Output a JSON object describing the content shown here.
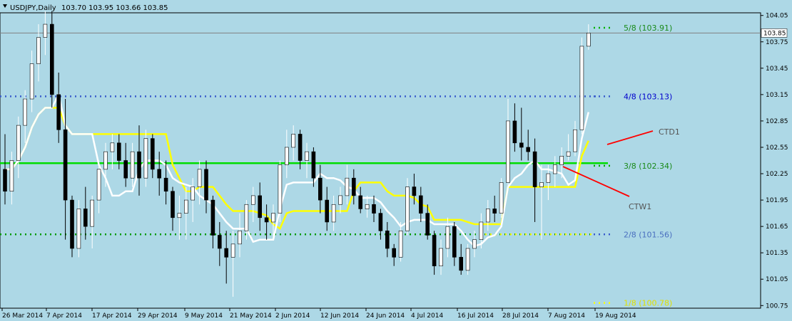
{
  "header": {
    "symbol": "USDJPY,Daily",
    "ohlc": "103.70 103.95 103.66 103.85"
  },
  "colors": {
    "background": "#ADD8E6",
    "bull_fill": "#FFFFFF",
    "bear_fill": "#000000",
    "grid_level_green": "#00DD00",
    "white_line": "#FFFFFF",
    "yellow_line": "#FFFF00",
    "red_line": "#FF0000",
    "current_price_line": "#808080"
  },
  "chart_data": {
    "type": "candlestick",
    "title": "USDJPY,Daily",
    "ylim": [
      100.72,
      104.08
    ],
    "y_ticks": [
      "104.05",
      "103.75",
      "103.45",
      "103.15",
      "102.85",
      "102.55",
      "102.25",
      "101.95",
      "101.65",
      "101.35",
      "101.05",
      "100.75"
    ],
    "x_ticks": [
      "26 Mar 2014",
      "7 Apr 2014",
      "17 Apr 2014",
      "29 Apr 2014",
      "9 May 2014",
      "21 May 2014",
      "2 Jun 2014",
      "12 Jun 2014",
      "24 Jun 2014",
      "4 Jul 2014",
      "16 Jul 2014",
      "28 Jul 2014",
      "7 Aug 2014",
      "19 Aug 2014"
    ],
    "current_price": "103.85",
    "current_price_value": 103.85,
    "candles": [
      [
        102.3,
        102.7,
        101.9,
        102.05
      ],
      [
        102.05,
        102.5,
        101.9,
        102.4
      ],
      [
        102.4,
        102.9,
        102.2,
        102.8
      ],
      [
        102.8,
        103.2,
        102.6,
        103.1
      ],
      [
        103.1,
        103.65,
        102.95,
        103.5
      ],
      [
        103.5,
        103.95,
        103.3,
        103.8
      ],
      [
        103.8,
        104.1,
        103.6,
        103.95
      ],
      [
        103.95,
        104.1,
        103.0,
        103.15
      ],
      [
        103.15,
        103.4,
        102.6,
        102.75
      ],
      [
        102.75,
        103.1,
        101.5,
        101.95
      ],
      [
        101.95,
        102.0,
        101.3,
        101.4
      ],
      [
        101.4,
        101.95,
        101.3,
        101.85
      ],
      [
        101.85,
        102.1,
        101.5,
        101.65
      ],
      [
        101.65,
        102.0,
        101.4,
        101.95
      ],
      [
        101.95,
        102.4,
        101.8,
        102.3
      ],
      [
        102.3,
        102.6,
        102.1,
        102.5
      ],
      [
        102.5,
        102.7,
        102.3,
        102.6
      ],
      [
        102.6,
        102.7,
        102.3,
        102.4
      ],
      [
        102.4,
        102.6,
        102.1,
        102.2
      ],
      [
        102.2,
        102.6,
        102.1,
        102.5
      ],
      [
        102.5,
        102.8,
        102.0,
        102.2
      ],
      [
        102.2,
        102.75,
        102.1,
        102.65
      ],
      [
        102.65,
        102.7,
        102.2,
        102.3
      ],
      [
        102.3,
        102.5,
        102.0,
        102.2
      ],
      [
        102.2,
        102.4,
        101.9,
        102.05
      ],
      [
        102.05,
        102.1,
        101.6,
        101.75
      ],
      [
        101.75,
        102.0,
        101.5,
        101.8
      ],
      [
        101.8,
        102.1,
        101.5,
        101.95
      ],
      [
        101.95,
        102.2,
        101.7,
        102.1
      ],
      [
        102.1,
        102.4,
        101.9,
        102.3
      ],
      [
        102.3,
        102.4,
        101.8,
        101.95
      ],
      [
        101.95,
        102.0,
        101.4,
        101.55
      ],
      [
        101.55,
        101.7,
        101.2,
        101.4
      ],
      [
        101.4,
        101.6,
        101.0,
        101.3
      ],
      [
        101.3,
        101.6,
        100.85,
        101.45
      ],
      [
        101.45,
        101.8,
        101.3,
        101.6
      ],
      [
        101.6,
        101.95,
        101.5,
        101.9
      ],
      [
        101.9,
        102.1,
        101.7,
        102.0
      ],
      [
        102.0,
        102.15,
        101.6,
        101.75
      ],
      [
        101.75,
        101.9,
        101.5,
        101.7
      ],
      [
        101.7,
        101.9,
        101.5,
        101.8
      ],
      [
        101.8,
        102.4,
        101.7,
        102.35
      ],
      [
        102.35,
        102.75,
        102.2,
        102.55
      ],
      [
        102.55,
        102.8,
        102.4,
        102.7
      ],
      [
        102.7,
        102.75,
        102.3,
        102.4
      ],
      [
        102.4,
        102.6,
        102.2,
        102.5
      ],
      [
        102.5,
        102.55,
        102.1,
        102.2
      ],
      [
        102.2,
        102.35,
        101.8,
        101.95
      ],
      [
        101.95,
        102.1,
        101.6,
        101.7
      ],
      [
        101.7,
        102.0,
        101.6,
        101.9
      ],
      [
        101.9,
        102.1,
        101.8,
        102.0
      ],
      [
        102.0,
        102.35,
        101.9,
        102.2
      ],
      [
        102.2,
        102.3,
        101.9,
        102.0
      ],
      [
        102.0,
        102.1,
        101.8,
        101.85
      ],
      [
        101.85,
        102.0,
        101.75,
        101.9
      ],
      [
        101.9,
        102.0,
        101.7,
        101.8
      ],
      [
        101.8,
        101.85,
        101.5,
        101.6
      ],
      [
        101.6,
        101.7,
        101.3,
        101.4
      ],
      [
        101.4,
        101.45,
        101.2,
        101.3
      ],
      [
        101.3,
        101.7,
        101.25,
        101.6
      ],
      [
        101.6,
        102.2,
        101.55,
        102.1
      ],
      [
        102.1,
        102.25,
        101.9,
        102.0
      ],
      [
        102.0,
        102.1,
        101.7,
        101.8
      ],
      [
        101.8,
        101.9,
        101.5,
        101.55
      ],
      [
        101.55,
        101.6,
        101.1,
        101.2
      ],
      [
        101.2,
        101.5,
        101.1,
        101.4
      ],
      [
        101.4,
        101.75,
        101.3,
        101.65
      ],
      [
        101.65,
        101.7,
        101.2,
        101.3
      ],
      [
        101.3,
        101.45,
        101.1,
        101.15
      ],
      [
        101.15,
        101.45,
        101.1,
        101.4
      ],
      [
        101.4,
        101.6,
        101.3,
        101.5
      ],
      [
        101.5,
        101.8,
        101.4,
        101.7
      ],
      [
        101.7,
        101.95,
        101.6,
        101.85
      ],
      [
        101.85,
        102.0,
        101.7,
        101.8
      ],
      [
        101.8,
        102.2,
        101.75,
        102.15
      ],
      [
        102.15,
        103.1,
        102.1,
        102.85
      ],
      [
        102.85,
        103.05,
        102.5,
        102.6
      ],
      [
        102.6,
        103.0,
        102.4,
        102.55
      ],
      [
        102.55,
        102.75,
        102.4,
        102.5
      ],
      [
        102.5,
        102.65,
        101.7,
        102.1
      ],
      [
        102.1,
        102.35,
        101.5,
        102.15
      ],
      [
        102.15,
        102.35,
        101.95,
        102.25
      ],
      [
        102.25,
        102.45,
        102.1,
        102.35
      ],
      [
        102.35,
        102.55,
        102.2,
        102.45
      ],
      [
        102.45,
        102.7,
        102.4,
        102.5
      ],
      [
        102.5,
        102.85,
        102.45,
        102.75
      ],
      [
        102.75,
        103.8,
        102.7,
        103.7
      ],
      [
        103.7,
        103.95,
        103.66,
        103.85
      ]
    ],
    "levels": [
      {
        "label": "5/8 (103.91)",
        "value": 103.91,
        "color": "#1A8A1A",
        "dot_color": "#00B000"
      },
      {
        "label": "4/8 (103.13)",
        "value": 103.13,
        "color": "#0000CC",
        "dot_color": "#3A5CCC"
      },
      {
        "label": "3/8 (102.34)",
        "value": 102.34,
        "color": "#1A8A1A",
        "dot_color": "#00B000"
      },
      {
        "label": "2/8 (101.56)",
        "value": 101.56,
        "color": "#4A6FBF",
        "dot_color": "#3A5CCC"
      },
      {
        "label": "1/8 (100.78)",
        "value": 100.78,
        "color": "#E0E000",
        "dot_color": "#FFFF00"
      }
    ],
    "horizontal_lines": {
      "green_solid": 102.37,
      "green_dotted": 101.56,
      "blue_dotted": 103.13
    },
    "trendline_labels": {
      "ctd": "CTD1",
      "ctw": "CTW1"
    }
  }
}
